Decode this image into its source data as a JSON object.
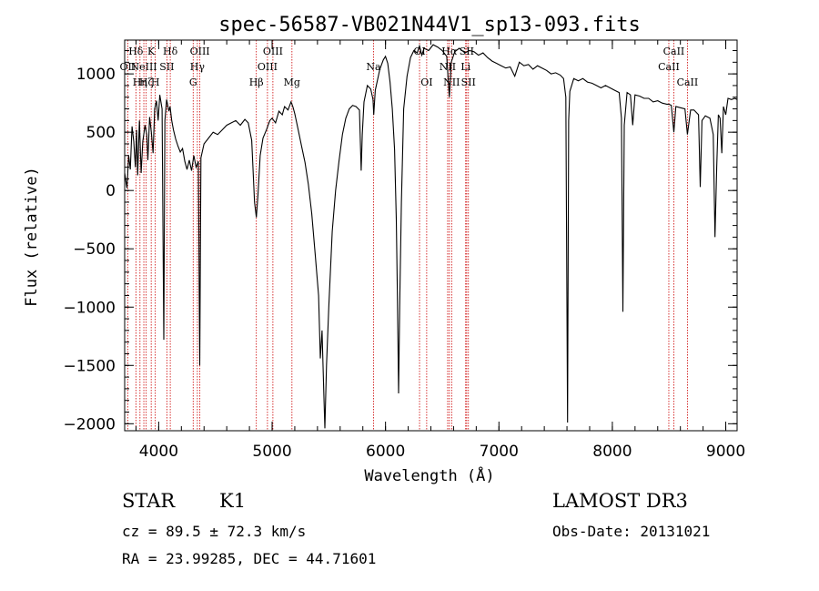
{
  "chart_data": {
    "type": "line",
    "title": "spec-56587-VB021N44V1_sp13-093.fits",
    "xlabel": "Wavelength (Å)",
    "ylabel": "Flux (relative)",
    "xlim": [
      3700,
      9100
    ],
    "ylim": [
      -2060,
      1290
    ],
    "x_ticks": [
      4000,
      5000,
      6000,
      7000,
      8000,
      9000
    ],
    "y_ticks": [
      -2000,
      -1500,
      -1000,
      -500,
      0,
      500,
      1000
    ],
    "x_minor_step": 200,
    "y_minor_step": 100,
    "series": [
      {
        "name": "flux",
        "points": [
          [
            3700,
            150
          ],
          [
            3720,
            20
          ],
          [
            3735,
            300
          ],
          [
            3750,
            180
          ],
          [
            3765,
            550
          ],
          [
            3780,
            420
          ],
          [
            3795,
            200
          ],
          [
            3805,
            520
          ],
          [
            3815,
            130
          ],
          [
            3830,
            600
          ],
          [
            3845,
            150
          ],
          [
            3860,
            420
          ],
          [
            3880,
            560
          ],
          [
            3895,
            480
          ],
          [
            3905,
            260
          ],
          [
            3920,
            630
          ],
          [
            3935,
            500
          ],
          [
            3950,
            320
          ],
          [
            3965,
            700
          ],
          [
            3980,
            770
          ],
          [
            3995,
            600
          ],
          [
            4010,
            820
          ],
          [
            4030,
            700
          ],
          [
            4045,
            -1280
          ],
          [
            4055,
            600
          ],
          [
            4070,
            780
          ],
          [
            4090,
            680
          ],
          [
            4100,
            720
          ],
          [
            4115,
            600
          ],
          [
            4130,
            520
          ],
          [
            4150,
            440
          ],
          [
            4170,
            380
          ],
          [
            4190,
            330
          ],
          [
            4210,
            360
          ],
          [
            4230,
            250
          ],
          [
            4250,
            180
          ],
          [
            4270,
            260
          ],
          [
            4290,
            170
          ],
          [
            4310,
            300
          ],
          [
            4330,
            200
          ],
          [
            4350,
            250
          ],
          [
            4362,
            -1500
          ],
          [
            4372,
            280
          ],
          [
            4400,
            400
          ],
          [
            4440,
            450
          ],
          [
            4480,
            500
          ],
          [
            4520,
            480
          ],
          [
            4560,
            520
          ],
          [
            4600,
            560
          ],
          [
            4640,
            580
          ],
          [
            4680,
            600
          ],
          [
            4720,
            560
          ],
          [
            4760,
            610
          ],
          [
            4790,
            580
          ],
          [
            4820,
            430
          ],
          [
            4845,
            -100
          ],
          [
            4861,
            -230
          ],
          [
            4875,
            -50
          ],
          [
            4895,
            300
          ],
          [
            4920,
            450
          ],
          [
            4950,
            520
          ],
          [
            4980,
            600
          ],
          [
            5000,
            620
          ],
          [
            5030,
            580
          ],
          [
            5060,
            680
          ],
          [
            5090,
            650
          ],
          [
            5110,
            720
          ],
          [
            5140,
            690
          ],
          [
            5167,
            760
          ],
          [
            5183,
            720
          ],
          [
            5200,
            660
          ],
          [
            5230,
            520
          ],
          [
            5260,
            380
          ],
          [
            5290,
            240
          ],
          [
            5320,
            50
          ],
          [
            5350,
            -200
          ],
          [
            5380,
            -550
          ],
          [
            5410,
            -900
          ],
          [
            5425,
            -1440
          ],
          [
            5440,
            -1200
          ],
          [
            5455,
            -1700
          ],
          [
            5465,
            -2040
          ],
          [
            5480,
            -1500
          ],
          [
            5500,
            -1000
          ],
          [
            5530,
            -350
          ],
          [
            5560,
            0
          ],
          [
            5590,
            250
          ],
          [
            5620,
            480
          ],
          [
            5650,
            620
          ],
          [
            5680,
            700
          ],
          [
            5710,
            730
          ],
          [
            5740,
            720
          ],
          [
            5770,
            690
          ],
          [
            5785,
            170
          ],
          [
            5795,
            480
          ],
          [
            5810,
            760
          ],
          [
            5840,
            900
          ],
          [
            5870,
            870
          ],
          [
            5890,
            780
          ],
          [
            5896,
            650
          ],
          [
            5910,
            860
          ],
          [
            5950,
            1040
          ],
          [
            5980,
            1120
          ],
          [
            6000,
            1150
          ],
          [
            6020,
            1090
          ],
          [
            6040,
            930
          ],
          [
            6060,
            700
          ],
          [
            6080,
            350
          ],
          [
            6095,
            -250
          ],
          [
            6105,
            -900
          ],
          [
            6115,
            -1740
          ],
          [
            6125,
            -1000
          ],
          [
            6140,
            -100
          ],
          [
            6160,
            700
          ],
          [
            6190,
            980
          ],
          [
            6220,
            1140
          ],
          [
            6250,
            1200
          ],
          [
            6280,
            1180
          ],
          [
            6300,
            1240
          ],
          [
            6320,
            1160
          ],
          [
            6340,
            1220
          ],
          [
            6380,
            1200
          ],
          [
            6420,
            1250
          ],
          [
            6460,
            1230
          ],
          [
            6500,
            1200
          ],
          [
            6540,
            1150
          ],
          [
            6563,
            800
          ],
          [
            6580,
            1100
          ],
          [
            6610,
            1190
          ],
          [
            6650,
            1220
          ],
          [
            6700,
            1180
          ],
          [
            6740,
            1200
          ],
          [
            6780,
            1190
          ],
          [
            6820,
            1160
          ],
          [
            6860,
            1180
          ],
          [
            6900,
            1140
          ],
          [
            6940,
            1110
          ],
          [
            6980,
            1090
          ],
          [
            7020,
            1070
          ],
          [
            7060,
            1050
          ],
          [
            7100,
            1060
          ],
          [
            7140,
            980
          ],
          [
            7180,
            1100
          ],
          [
            7220,
            1070
          ],
          [
            7260,
            1080
          ],
          [
            7300,
            1040
          ],
          [
            7340,
            1070
          ],
          [
            7380,
            1050
          ],
          [
            7420,
            1030
          ],
          [
            7460,
            1000
          ],
          [
            7500,
            1010
          ],
          [
            7540,
            990
          ],
          [
            7570,
            960
          ],
          [
            7590,
            800
          ],
          [
            7605,
            -1990
          ],
          [
            7615,
            600
          ],
          [
            7625,
            850
          ],
          [
            7660,
            960
          ],
          [
            7700,
            940
          ],
          [
            7740,
            960
          ],
          [
            7780,
            930
          ],
          [
            7820,
            920
          ],
          [
            7860,
            900
          ],
          [
            7900,
            880
          ],
          [
            7940,
            900
          ],
          [
            7980,
            880
          ],
          [
            8020,
            860
          ],
          [
            8060,
            840
          ],
          [
            8080,
            620
          ],
          [
            8093,
            -1040
          ],
          [
            8105,
            560
          ],
          [
            8130,
            840
          ],
          [
            8160,
            820
          ],
          [
            8180,
            560
          ],
          [
            8200,
            820
          ],
          [
            8240,
            810
          ],
          [
            8280,
            790
          ],
          [
            8320,
            790
          ],
          [
            8360,
            760
          ],
          [
            8400,
            770
          ],
          [
            8440,
            750
          ],
          [
            8480,
            740
          ],
          [
            8500,
            740
          ],
          [
            8520,
            730
          ],
          [
            8542,
            500
          ],
          [
            8560,
            720
          ],
          [
            8600,
            710
          ],
          [
            8640,
            700
          ],
          [
            8662,
            480
          ],
          [
            8690,
            690
          ],
          [
            8720,
            690
          ],
          [
            8760,
            650
          ],
          [
            8775,
            30
          ],
          [
            8790,
            600
          ],
          [
            8820,
            640
          ],
          [
            8860,
            620
          ],
          [
            8890,
            480
          ],
          [
            8905,
            -400
          ],
          [
            8920,
            200
          ],
          [
            8935,
            650
          ],
          [
            8950,
            620
          ],
          [
            8965,
            320
          ],
          [
            8980,
            720
          ],
          [
            9000,
            650
          ],
          [
            9020,
            790
          ],
          [
            9050,
            780
          ],
          [
            9080,
            790
          ],
          [
            9100,
            780
          ]
        ]
      }
    ],
    "line_markers": [
      {
        "wl": 3727,
        "labels": [
          "OII"
        ],
        "row": [
          1
        ]
      },
      {
        "wl": 3799,
        "labels": [
          "Hδ"
        ],
        "row": [
          0
        ]
      },
      {
        "wl": 3835,
        "labels": [
          "Hη"
        ],
        "row": [
          2
        ]
      },
      {
        "wl": 3869,
        "labels": [
          "NeIII"
        ],
        "row": [
          1
        ]
      },
      {
        "wl": 3890,
        "labels": [
          "Hζ"
        ],
        "row": [
          2
        ]
      },
      {
        "wl": 3934,
        "labels": [
          "K"
        ],
        "row": [
          0
        ]
      },
      {
        "wl": 3970,
        "labels": [
          "H"
        ],
        "row": [
          2
        ]
      },
      {
        "wl": 4072,
        "labels": [
          "SII"
        ],
        "row": [
          1
        ]
      },
      {
        "wl": 4102,
        "labels": [
          "Hδ"
        ],
        "row": [
          0
        ]
      },
      {
        "wl": 4304,
        "labels": [
          "G"
        ],
        "row": [
          2
        ]
      },
      {
        "wl": 4341,
        "labels": [
          "Hγ"
        ],
        "row": [
          1
        ]
      },
      {
        "wl": 4363,
        "labels": [
          "OIII"
        ],
        "row": [
          0
        ]
      },
      {
        "wl": 4861,
        "labels": [
          "Hβ"
        ],
        "row": [
          2
        ]
      },
      {
        "wl": 4959,
        "labels": [
          "OIII"
        ],
        "row": [
          1
        ]
      },
      {
        "wl": 5007,
        "labels": [
          "OIII"
        ],
        "row": [
          0
        ]
      },
      {
        "wl": 5175,
        "labels": [
          "Mg"
        ],
        "row": [
          2
        ]
      },
      {
        "wl": 5894,
        "labels": [
          "Na"
        ],
        "row": [
          1
        ]
      },
      {
        "wl": 6300,
        "labels": [
          "OI"
        ],
        "row": [
          0
        ]
      },
      {
        "wl": 6363,
        "labels": [
          "OI"
        ],
        "row": [
          2
        ]
      },
      {
        "wl": 6548,
        "labels": [
          "NII"
        ],
        "row": [
          1
        ]
      },
      {
        "wl": 6563,
        "labels": [
          "Hα"
        ],
        "row": [
          0
        ]
      },
      {
        "wl": 6583,
        "labels": [
          "NII"
        ],
        "row": [
          2
        ]
      },
      {
        "wl": 6707,
        "labels": [
          "Li"
        ],
        "row": [
          1
        ]
      },
      {
        "wl": 6716,
        "labels": [
          "SII"
        ],
        "row": [
          0
        ]
      },
      {
        "wl": 6731,
        "labels": [
          "SII"
        ],
        "row": [
          2
        ]
      },
      {
        "wl": 8498,
        "labels": [
          "CaII"
        ],
        "row": [
          1
        ]
      },
      {
        "wl": 8542,
        "labels": [
          "CaII"
        ],
        "row": [
          0
        ]
      },
      {
        "wl": 8662,
        "labels": [
          "CaII"
        ],
        "row": [
          2
        ]
      }
    ]
  },
  "info": {
    "object_class": "STAR",
    "subclass": "K1",
    "survey": "LAMOST DR3",
    "redshift_line": "cz = 89.5 ± 72.3 km/s",
    "obs_date_line": "Obs-Date: 20131021",
    "coords_line": "RA =  23.99285, DEC =  44.71601"
  },
  "colors": {
    "spectrum": "#000000",
    "marker_line": "#cc0000",
    "text": "#000000",
    "background": "#ffffff"
  }
}
